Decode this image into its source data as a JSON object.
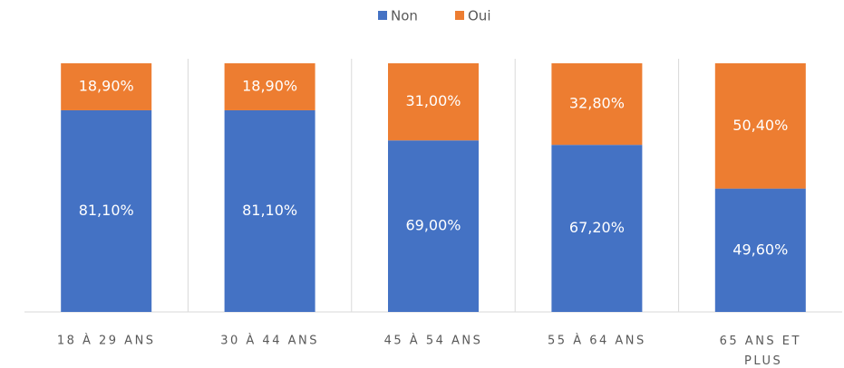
{
  "chart_data": {
    "type": "stacked_bar",
    "categories": [
      "18 À 29 ANS",
      "30 À 44 ANS",
      "45 À 54 ANS",
      "55 À 64 ANS",
      "65 ANS ET PLUS"
    ],
    "series": [
      {
        "name": "Non",
        "color": "#4472c4",
        "values": [
          81.1,
          81.1,
          69.0,
          67.2,
          49.6
        ],
        "value_labels": [
          "81,10%",
          "81,10%",
          "69,00%",
          "67,20%",
          "49,60%"
        ]
      },
      {
        "name": "Oui",
        "color": "#ed7d31",
        "values": [
          18.9,
          18.9,
          31.0,
          32.8,
          50.4
        ],
        "value_labels": [
          "18,90%",
          "18,90%",
          "31,00%",
          "32,80%",
          "50,40%"
        ]
      }
    ],
    "ylim": [
      0,
      100
    ],
    "legend": "top"
  }
}
